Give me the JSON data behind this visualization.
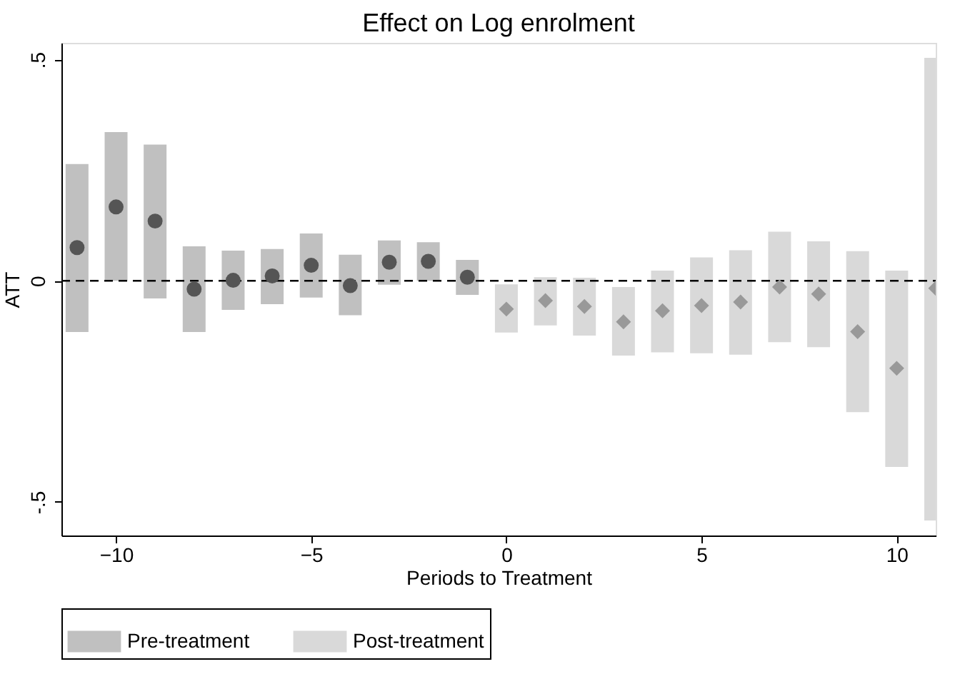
{
  "chart_data": {
    "type": "bar",
    "title": "Effect on Log enrolment",
    "xlabel": "Periods to Treatment",
    "ylabel": "ATT",
    "xlim": [
      -11.4,
      11
    ],
    "xticks": [
      -10,
      -5,
      0,
      5,
      10
    ],
    "ylim": [
      -0.576,
      0.538
    ],
    "yticks": [
      {
        "value": -0.5,
        "label": "-.5"
      },
      {
        "value": 0,
        "label": "0"
      },
      {
        "value": 0.5,
        "label": ".5"
      }
    ],
    "grid": false,
    "legend": "bottom",
    "ref_lines": [
      {
        "axis": "y",
        "value": 0,
        "line_style": "dashed",
        "color": "#000000"
      }
    ],
    "series": [
      {
        "name": "Pre-treatment",
        "color": "#c0c0c0",
        "x": [
          -11,
          -10,
          -9,
          -8,
          -7,
          -6,
          -5,
          -4,
          -3,
          -2,
          -1
        ],
        "base": [
          -0.116,
          0.0,
          -0.04,
          -0.116,
          -0.066,
          -0.053,
          -0.038,
          -0.078,
          -0.009,
          0.0,
          -0.032
        ],
        "values": [
          0.38,
          0.336,
          0.348,
          0.194,
          0.134,
          0.125,
          0.145,
          0.137,
          0.1,
          0.087,
          0.079
        ]
      },
      {
        "name": "Post-treatment",
        "color": "#d9d9d9",
        "x": [
          0,
          1,
          2,
          3,
          4,
          5,
          6,
          7,
          8,
          9,
          10,
          11
        ],
        "base": [
          -0.117,
          -0.101,
          -0.124,
          -0.169,
          -0.162,
          -0.164,
          -0.167,
          -0.139,
          -0.15,
          -0.297,
          -0.421,
          -0.542
        ],
        "values": [
          0.109,
          0.109,
          0.131,
          0.155,
          0.185,
          0.217,
          0.236,
          0.25,
          0.239,
          0.364,
          0.444,
          1.046
        ]
      },
      {
        "type": "scatter",
        "marker": "circle",
        "color": "#555555",
        "x": [
          -11,
          -10,
          -9,
          -8,
          -7,
          -6,
          -5,
          -4,
          -3,
          -2,
          -1
        ],
        "values": [
          0.075,
          0.167,
          0.135,
          -0.019,
          0.001,
          0.011,
          0.035,
          -0.011,
          0.042,
          0.044,
          0.008
        ]
      },
      {
        "type": "scatter",
        "marker": "diamond",
        "color": "#999999",
        "x": [
          0,
          1,
          2,
          3,
          4,
          5,
          6,
          7,
          8,
          9,
          10,
          11
        ],
        "values": [
          -0.064,
          -0.045,
          -0.058,
          -0.093,
          -0.068,
          -0.056,
          -0.048,
          -0.014,
          -0.03,
          -0.115,
          -0.198,
          -0.017
        ]
      }
    ]
  }
}
